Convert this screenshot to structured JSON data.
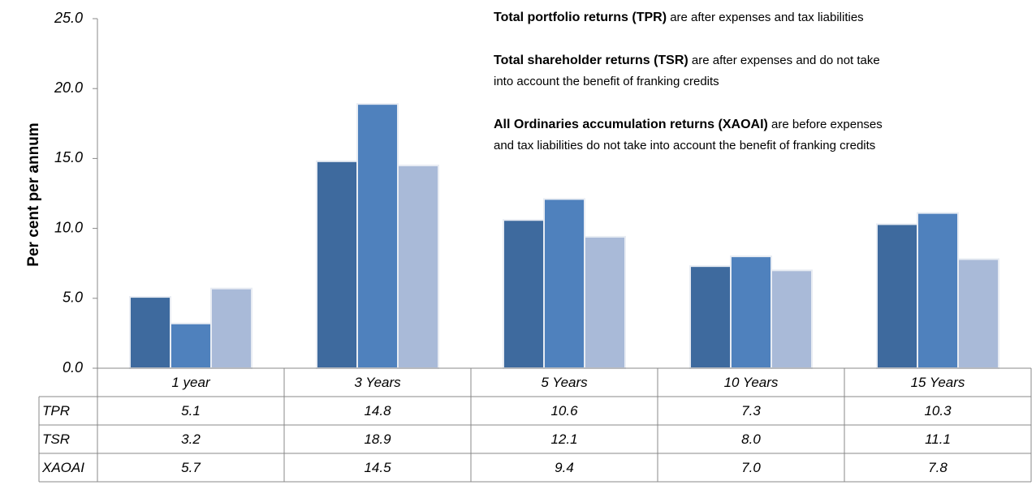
{
  "chart_data": {
    "type": "bar",
    "y_label": "Per cent per annum",
    "categories": [
      "1 year",
      "3 Years",
      "5 Years",
      "10 Years",
      "15 Years"
    ],
    "series": [
      {
        "name": "TPR",
        "color": "#3e6a9e",
        "values": [
          5.1,
          14.8,
          10.6,
          7.3,
          10.3
        ],
        "value_labels": [
          "5.1",
          "14.8",
          "10.6",
          "7.3",
          "10.3"
        ]
      },
      {
        "name": "TSR",
        "color": "#4f81bd",
        "values": [
          3.2,
          18.9,
          12.1,
          8.0,
          11.1
        ],
        "value_labels": [
          "3.2",
          "18.9",
          "12.1",
          "8.0",
          "11.1"
        ]
      },
      {
        "name": "XAOAI",
        "color": "#a9bad8",
        "values": [
          5.7,
          14.5,
          9.4,
          7.0,
          7.8
        ],
        "value_labels": [
          "5.7",
          "14.5",
          "9.4",
          "7.0",
          "7.8"
        ]
      }
    ],
    "ylim": [
      0,
      25
    ],
    "yticks": [
      {
        "value": 0,
        "label": "0.0"
      },
      {
        "value": 5,
        "label": "5.0"
      },
      {
        "value": 10,
        "label": "10.0"
      },
      {
        "value": 15,
        "label": "15.0"
      },
      {
        "value": 20,
        "label": "20.0"
      },
      {
        "value": 25,
        "label": "25.0"
      }
    ],
    "annotations": [
      {
        "bold": "Total portfolio returns (TPR)",
        "lines": [
          "are after expenses and tax liabilities"
        ]
      },
      {
        "bold": "Total shareholder returns (TSR)",
        "lines": [
          "are after expenses and do not take",
          "into account the benefit of franking credits"
        ]
      },
      {
        "bold": "All Ordinaries accumulation returns (XAOAI)",
        "lines": [
          "are before expenses",
          "and  tax liabilities do not take into account the benefit of franking credits"
        ]
      }
    ]
  }
}
